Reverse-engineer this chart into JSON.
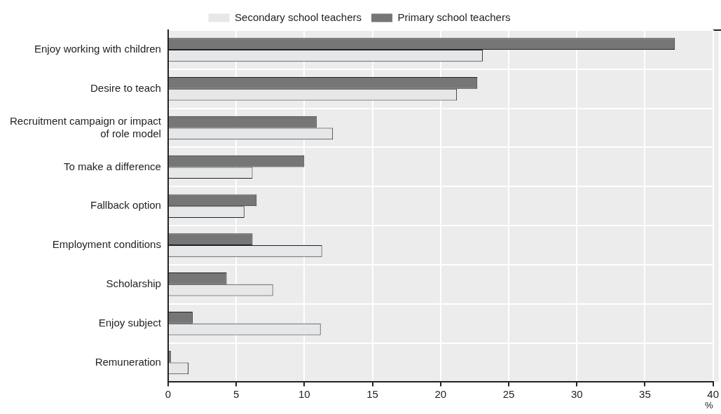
{
  "chart_data": {
    "type": "bar",
    "orientation": "horizontal",
    "xlabel": "%",
    "categories": [
      "Enjoy working with children",
      "Desire to teach",
      "Recruitment campaign or impact of role model",
      "To make a difference",
      "Fallback option",
      "Employment conditions",
      "Scholarship",
      "Enjoy subject",
      "Remuneration"
    ],
    "series": [
      {
        "name": "Primary school teachers",
        "color": "#767676",
        "values": [
          37.2,
          22.7,
          10.9,
          10.0,
          6.5,
          6.2,
          4.3,
          1.8,
          0.2
        ]
      },
      {
        "name": "Secondary school teachers",
        "color": "#e6e7e8",
        "values": [
          23.1,
          21.2,
          12.1,
          6.2,
          5.6,
          11.3,
          7.7,
          11.2,
          1.5
        ]
      }
    ],
    "xlim": [
      0,
      40
    ],
    "xticks": [
      0,
      5,
      10,
      15,
      20,
      25,
      30,
      35,
      40
    ],
    "grid": true,
    "legend": "top"
  }
}
